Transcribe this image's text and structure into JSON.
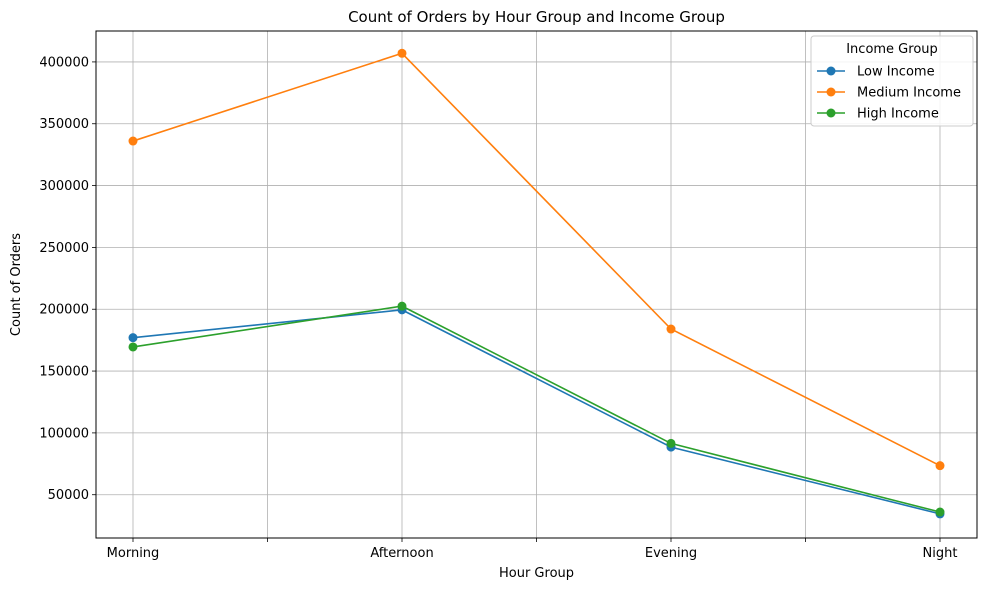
{
  "chart_data": {
    "type": "line",
    "title": "Count of Orders by Hour Group and Income Group",
    "xlabel": "Hour Group",
    "ylabel": "Count of Orders",
    "categories": [
      "Morning",
      "Afternoon",
      "Evening",
      "Night"
    ],
    "ylim": [
      15000,
      425000
    ],
    "yticks": [
      50000,
      100000,
      150000,
      200000,
      250000,
      300000,
      350000,
      400000
    ],
    "grid": true,
    "legend": {
      "title": "Income Group",
      "placement": "top-right"
    },
    "series": [
      {
        "name": "Low Income",
        "color": "#1f77b4",
        "values": [
          177000,
          199500,
          88500,
          34500
        ]
      },
      {
        "name": "Medium Income",
        "color": "#ff7f0e",
        "values": [
          336000,
          407000,
          184000,
          73500
        ]
      },
      {
        "name": "High Income",
        "color": "#2ca02c",
        "values": [
          169500,
          202500,
          91500,
          36000
        ]
      }
    ]
  }
}
